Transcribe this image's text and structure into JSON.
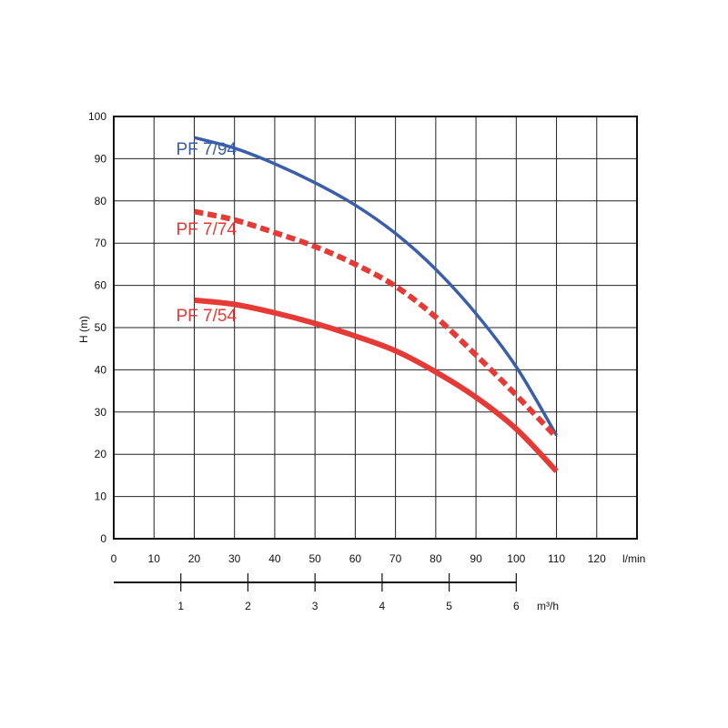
{
  "chart_data": {
    "type": "line",
    "title": "",
    "xlabel": "l/min",
    "x2label": "m³/h",
    "ylabel": "H (m)",
    "xlim": [
      0,
      130
    ],
    "ylim": [
      0,
      100
    ],
    "grid": true,
    "xticks": [
      0,
      10,
      20,
      30,
      40,
      50,
      60,
      70,
      80,
      90,
      100,
      110,
      120
    ],
    "yticks": [
      0,
      10,
      20,
      30,
      40,
      50,
      60,
      70,
      80,
      90,
      100
    ],
    "x2ticks": [
      {
        "label": "1",
        "lpm": 16.67
      },
      {
        "label": "2",
        "lpm": 33.33
      },
      {
        "label": "3",
        "lpm": 50
      },
      {
        "label": "4",
        "lpm": 66.67
      },
      {
        "label": "5",
        "lpm": 83.33
      },
      {
        "label": "6",
        "lpm": 100
      }
    ],
    "series": [
      {
        "name": "PF 7/94",
        "color": "#3a5ea8",
        "style": "solid",
        "label_at": [
          20,
          91
        ],
        "x": [
          20,
          30,
          40,
          50,
          60,
          70,
          80,
          90,
          100,
          110
        ],
        "y": [
          95,
          92.5,
          88.8,
          84.3,
          79,
          72.3,
          63.8,
          53.3,
          40.7,
          24.5
        ]
      },
      {
        "name": "PF 7/74",
        "color": "#e53a35",
        "style": "dashed",
        "label_at": [
          20,
          72
        ],
        "x": [
          20,
          30,
          40,
          50,
          60,
          70,
          80,
          90,
          100,
          110
        ],
        "y": [
          77.5,
          75.5,
          72.5,
          69.2,
          65,
          59.8,
          52.5,
          43.5,
          34,
          24
        ]
      },
      {
        "name": "PF 7/54",
        "color": "#e53a35",
        "style": "solid",
        "label_at": [
          20,
          51.5
        ],
        "x": [
          20,
          30,
          40,
          50,
          60,
          70,
          80,
          90,
          100,
          110
        ],
        "y": [
          56.5,
          55.5,
          53.5,
          51,
          48,
          44.5,
          39.5,
          33.5,
          26,
          16
        ]
      }
    ]
  }
}
